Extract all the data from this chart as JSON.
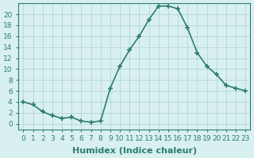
{
  "x": [
    0,
    1,
    2,
    3,
    4,
    5,
    6,
    7,
    8,
    9,
    10,
    11,
    12,
    13,
    14,
    15,
    16,
    17,
    18,
    19,
    20,
    21,
    22,
    23
  ],
  "y": [
    4.0,
    3.5,
    2.2,
    1.5,
    1.0,
    1.2,
    0.5,
    0.3,
    0.5,
    6.5,
    10.5,
    13.5,
    16.0,
    19.0,
    21.5,
    21.5,
    21.0,
    17.5,
    13.0,
    10.5,
    9.0,
    7.0,
    6.5,
    6.0
  ],
  "line_color": "#2e7d6e",
  "bg_color": "#d8f0f0",
  "grid_color": "#b0cece",
  "marker": "+",
  "xlabel": "Humidex (Indice chaleur)",
  "ylim": [
    -1,
    22
  ],
  "yticks": [
    0,
    2,
    4,
    6,
    8,
    10,
    12,
    14,
    16,
    18,
    20
  ],
  "xlim": [
    -0.5,
    23.5
  ],
  "xticks": [
    0,
    1,
    2,
    3,
    4,
    5,
    6,
    7,
    8,
    9,
    10,
    11,
    12,
    13,
    14,
    15,
    16,
    17,
    18,
    19,
    20,
    21,
    22,
    23
  ],
  "tick_label_fontsize": 6.5,
  "xlabel_fontsize": 8,
  "line_width": 1.2,
  "marker_size": 5,
  "markeredgewidth": 1.2
}
